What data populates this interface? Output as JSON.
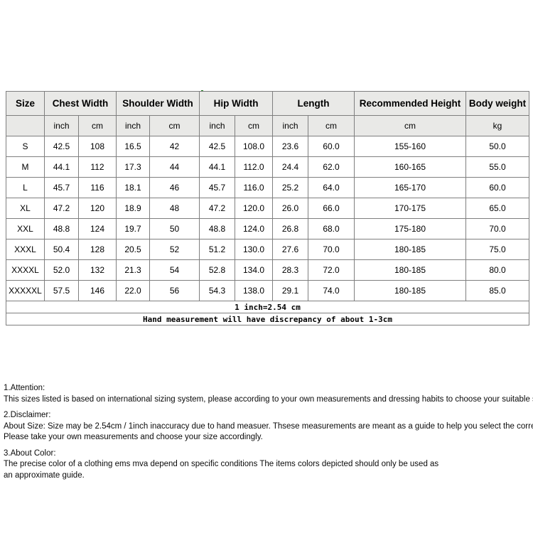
{
  "table": {
    "header_groups": [
      {
        "label": "Size",
        "span": 1
      },
      {
        "label": "Chest Width",
        "span": 2
      },
      {
        "label": "Shoulder Width",
        "span": 2
      },
      {
        "label": "Hip Width",
        "span": 2
      },
      {
        "label": "Length",
        "span": 2
      },
      {
        "label": "Recommended Height",
        "span": 1
      },
      {
        "label": "Body weight",
        "span": 1
      }
    ],
    "subheaders": [
      "",
      "inch",
      "cm",
      "inch",
      "cm",
      "inch",
      "cm",
      "inch",
      "cm",
      "cm",
      "kg"
    ],
    "rows": [
      {
        "size": "S",
        "values": [
          "42.5",
          "108",
          "16.5",
          "42",
          "42.5",
          "108.0",
          "23.6",
          "60.0",
          "155-160",
          "50.0"
        ]
      },
      {
        "size": "M",
        "values": [
          "44.1",
          "112",
          "17.3",
          "44",
          "44.1",
          "112.0",
          "24.4",
          "62.0",
          "160-165",
          "55.0"
        ]
      },
      {
        "size": "L",
        "values": [
          "45.7",
          "116",
          "18.1",
          "46",
          "45.7",
          "116.0",
          "25.2",
          "64.0",
          "165-170",
          "60.0"
        ]
      },
      {
        "size": "XL",
        "values": [
          "47.2",
          "120",
          "18.9",
          "48",
          "47.2",
          "120.0",
          "26.0",
          "66.0",
          "170-175",
          "65.0"
        ]
      },
      {
        "size": "XXL",
        "values": [
          "48.8",
          "124",
          "19.7",
          "50",
          "48.8",
          "124.0",
          "26.8",
          "68.0",
          "175-180",
          "70.0"
        ]
      },
      {
        "size": "XXXL",
        "values": [
          "50.4",
          "128",
          "20.5",
          "52",
          "51.2",
          "130.0",
          "27.6",
          "70.0",
          "180-185",
          "75.0"
        ]
      },
      {
        "size": "XXXXL",
        "values": [
          "52.0",
          "132",
          "21.3",
          "54",
          "52.8",
          "134.0",
          "28.3",
          "72.0",
          "180-185",
          "80.0"
        ]
      },
      {
        "size": "XXXXXL",
        "values": [
          "57.5",
          "146",
          "22.0",
          "56",
          "54.3",
          "138.0",
          "29.1",
          "74.0",
          "180-185",
          "85.0"
        ]
      }
    ],
    "footnotes": [
      "1 inch=2.54 cm",
      "Hand measurement will have discrepancy of about 1-3cm"
    ]
  },
  "notes": [
    {
      "title": "1.Attention:",
      "lines": [
        "This sizes listed is based on international sizing system, please according to your own measurements and dressing habits to choose your suitable size."
      ]
    },
    {
      "title": "2.Disclaimer:",
      "lines": [
        "About Size: Size may be 2.54cm / 1inch inaccuracy due to hand measuer. Thsese measurements are meant as a guide to help you select the correct size.",
        "Please take your own measurements and choose your size accordingly."
      ]
    },
    {
      "title": "3.About Color:",
      "lines": [
        "The precise color of a clothing ems mva depend on specific conditions The items colors depicted should only be used as",
        "an approximate guide."
      ]
    }
  ],
  "colors": {
    "header_bg": "#e9e9e7",
    "cell_border": "#7f7f7f",
    "artifact_dot": "#1f7a1f"
  }
}
